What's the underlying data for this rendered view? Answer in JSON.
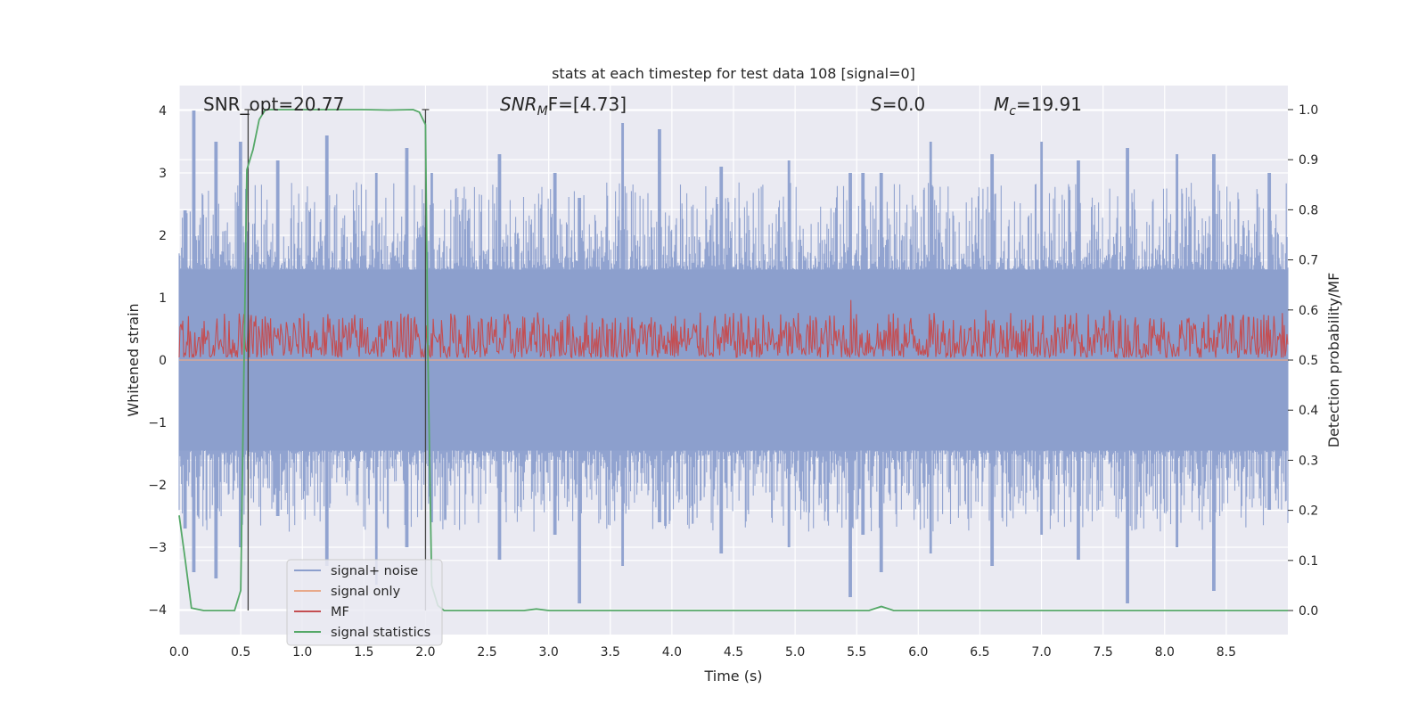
{
  "chart_data": {
    "type": "line",
    "title": "stats at each timestep for test data 108 [signal=0]",
    "xlabel": "Time (s)",
    "ylabel": "Whitened strain",
    "y2label": "Detection probability/MF",
    "xlim": [
      0.0,
      9.0
    ],
    "ylim": [
      -4.4,
      4.4
    ],
    "y2lim": [
      -0.048,
      1.048
    ],
    "x_ticks": [
      0.0,
      0.5,
      1.0,
      1.5,
      2.0,
      2.5,
      3.0,
      3.5,
      4.0,
      4.5,
      5.0,
      5.5,
      6.0,
      6.5,
      7.0,
      7.5,
      8.0,
      8.5
    ],
    "x_tick_labels": [
      "0.0",
      "0.5",
      "1.0",
      "1.5",
      "2.0",
      "2.5",
      "3.0",
      "3.5",
      "4.0",
      "4.5",
      "5.0",
      "5.5",
      "6.0",
      "6.5",
      "7.0",
      "7.5",
      "8.0",
      "8.5"
    ],
    "y_ticks": [
      -4,
      -3,
      -2,
      -1,
      0,
      1,
      2,
      3,
      4
    ],
    "y_tick_labels": [
      "−4",
      "−3",
      "−2",
      "−1",
      "0",
      "1",
      "2",
      "3",
      "4"
    ],
    "y2_ticks": [
      0.0,
      0.1,
      0.2,
      0.3,
      0.4,
      0.5,
      0.6,
      0.7,
      0.8,
      0.9,
      1.0
    ],
    "y2_tick_labels": [
      "0.0",
      "0.1",
      "0.2",
      "0.3",
      "0.4",
      "0.5",
      "0.6",
      "0.7",
      "0.8",
      "0.9",
      "1.0"
    ],
    "grid": true,
    "legend_position": "lower-left",
    "annotations": {
      "snr_opt": "SNR_opt=20.77",
      "snr_mf_sym": "SNR",
      "snr_mf_sub": "M",
      "snr_mf_rest": "F=[4.73]",
      "s_sym": "S",
      "s_rest": "=0.0",
      "mc_sym": "M",
      "mc_sub": "c",
      "mc_rest": "=19.91"
    },
    "markers": [
      0.56,
      2.0
    ],
    "series": [
      {
        "name": "signal+ noise",
        "color": "#8c9fcd",
        "axis": "left",
        "envelope_peaks": [
          [
            0.05,
            2.4,
            -2.7
          ],
          [
            0.12,
            4.0,
            -3.4
          ],
          [
            0.3,
            3.5,
            -3.5
          ],
          [
            0.5,
            3.5,
            -3.0
          ],
          [
            0.8,
            3.2,
            -2.5
          ],
          [
            1.2,
            3.6,
            -3.3
          ],
          [
            1.6,
            3.0,
            -3.6
          ],
          [
            1.85,
            3.4,
            -3.0
          ],
          [
            2.05,
            3.0,
            -2.6
          ],
          [
            2.6,
            3.3,
            -3.2
          ],
          [
            3.05,
            3.0,
            -2.8
          ],
          [
            3.25,
            2.6,
            -3.9
          ],
          [
            3.6,
            3.8,
            -3.3
          ],
          [
            3.9,
            3.7,
            -2.6
          ],
          [
            4.4,
            3.1,
            -3.1
          ],
          [
            4.95,
            3.2,
            -3.0
          ],
          [
            5.45,
            3.0,
            -3.8
          ],
          [
            5.55,
            3.0,
            -2.8
          ],
          [
            5.7,
            3.0,
            -3.4
          ],
          [
            6.1,
            3.5,
            -3.1
          ],
          [
            6.6,
            3.3,
            -3.3
          ],
          [
            7.0,
            3.5,
            -2.8
          ],
          [
            7.3,
            3.2,
            -3.2
          ],
          [
            7.7,
            3.4,
            -3.9
          ],
          [
            8.1,
            3.3,
            -3.0
          ],
          [
            8.4,
            3.3,
            -3.7
          ],
          [
            8.85,
            3.0,
            -2.4
          ]
        ]
      },
      {
        "name": "signal only",
        "color": "#e8a98a",
        "axis": "left",
        "x": [
          0.0,
          9.0
        ],
        "y": [
          0.0,
          0.0
        ]
      },
      {
        "name": "MF",
        "color": "#c44e52",
        "axis": "right",
        "baseline": 0.5,
        "range": [
          0.5,
          0.64
        ],
        "spikes": [
          [
            5.45,
            0.62
          ],
          [
            6.55,
            0.6
          ],
          [
            7.55,
            0.6
          ],
          [
            8.5,
            0.59
          ]
        ]
      },
      {
        "name": "signal statistics",
        "color": "#55a868",
        "axis": "right",
        "x": [
          0.0,
          0.05,
          0.1,
          0.2,
          0.3,
          0.4,
          0.45,
          0.5,
          0.55,
          0.6,
          0.65,
          0.7,
          0.8,
          1.0,
          1.5,
          1.7,
          1.9,
          1.95,
          2.0,
          2.02,
          2.05,
          2.1,
          2.15,
          2.5,
          2.8,
          2.9,
          3.0,
          3.5,
          5.5,
          5.6,
          5.7,
          5.8,
          6.0,
          9.0
        ],
        "y": [
          0.19,
          0.1,
          0.005,
          0.0,
          0.0,
          0.0,
          0.0,
          0.04,
          0.88,
          0.92,
          0.98,
          1.0,
          1.0,
          1.0,
          1.0,
          0.999,
          1.0,
          0.995,
          0.97,
          0.5,
          0.05,
          0.01,
          0.0,
          0.0,
          0.0,
          0.003,
          0.0,
          0.0,
          0.0,
          0.0,
          0.008,
          0.0,
          0.0,
          0.0
        ]
      }
    ]
  }
}
